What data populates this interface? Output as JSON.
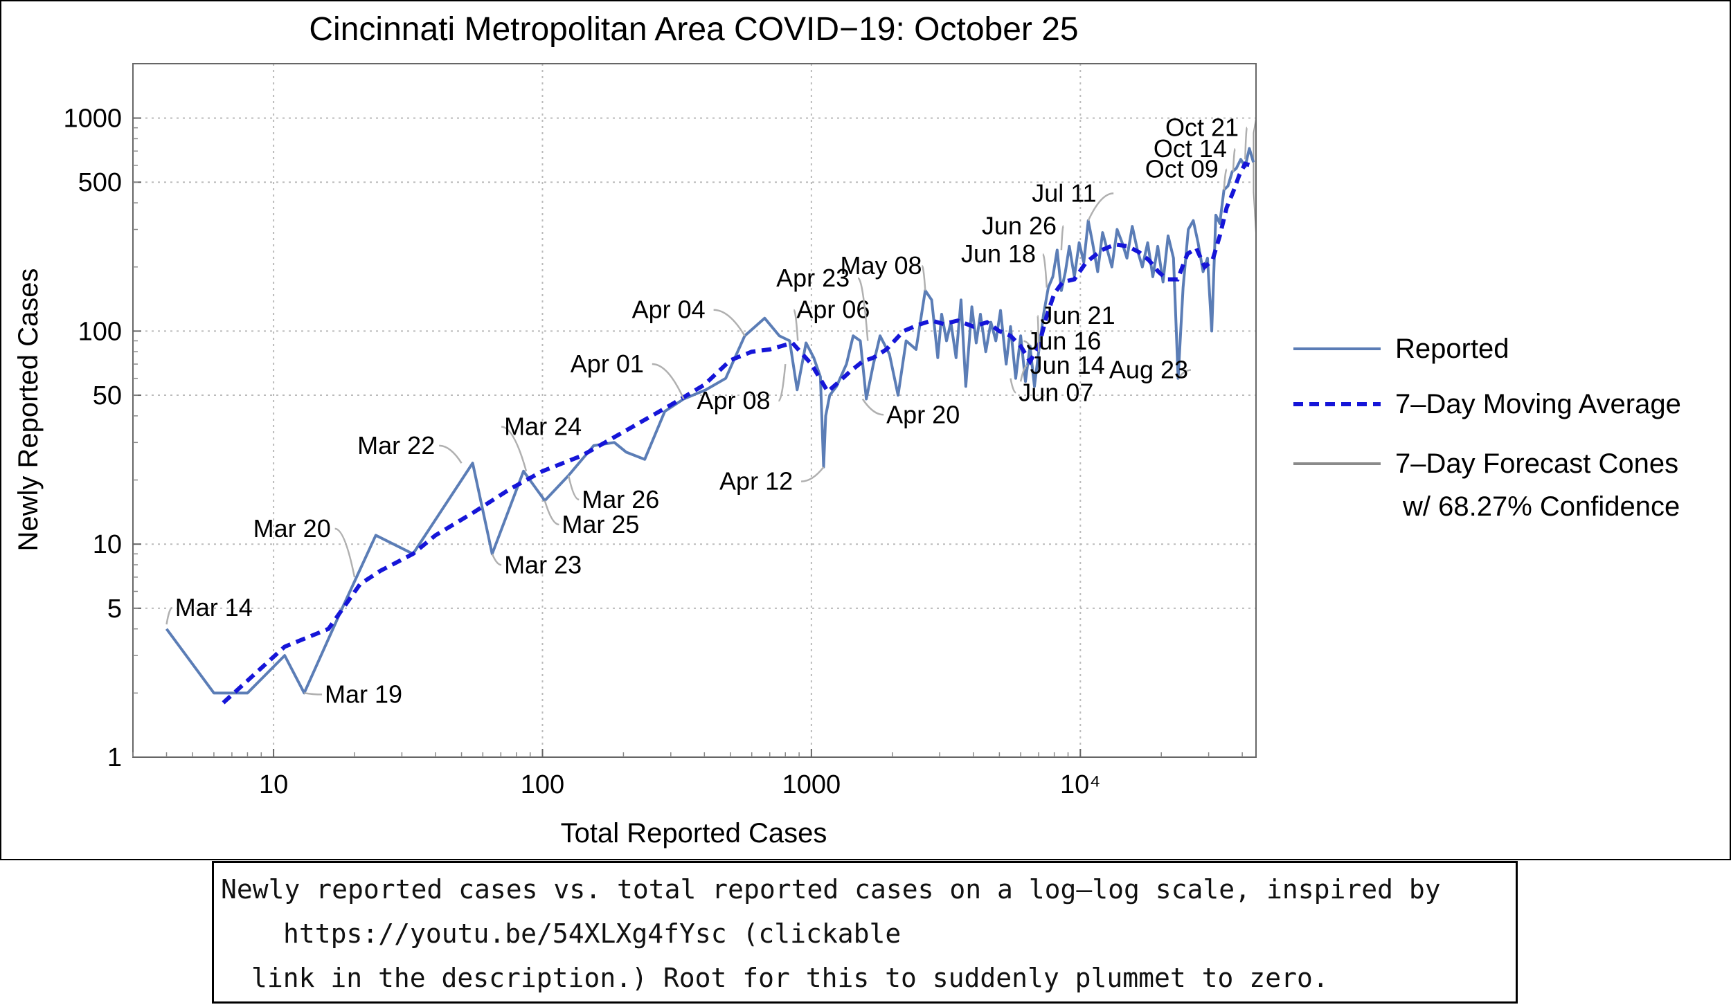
{
  "chart_data": {
    "type": "line",
    "scale": "log-log",
    "title": "Cincinnati Metropolitan Area COVID−19: October 25",
    "xlabel": "Total Reported Cases",
    "ylabel": "Newly Reported Cases",
    "xlim": [
      3,
      45000
    ],
    "ylim": [
      1,
      1800
    ],
    "x_ticks": [
      {
        "value": 10,
        "label": "10"
      },
      {
        "value": 100,
        "label": "100"
      },
      {
        "value": 1000,
        "label": "1000"
      },
      {
        "value": 10000,
        "label": "10⁴"
      }
    ],
    "y_ticks": [
      {
        "value": 1,
        "label": "1"
      },
      {
        "value": 5,
        "label": "5"
      },
      {
        "value": 10,
        "label": "10"
      },
      {
        "value": 50,
        "label": "50"
      },
      {
        "value": 100,
        "label": "100"
      },
      {
        "value": 500,
        "label": "500"
      },
      {
        "value": 1000,
        "label": "1000"
      }
    ],
    "series": [
      {
        "name": "Reported",
        "color": "#5b7db6",
        "points": [
          [
            4,
            4
          ],
          [
            6,
            2
          ],
          [
            8,
            2
          ],
          [
            11,
            3
          ],
          [
            13,
            2
          ],
          [
            18,
            5
          ],
          [
            24,
            11
          ],
          [
            33,
            9
          ],
          [
            55,
            24
          ],
          [
            65,
            9
          ],
          [
            85,
            22
          ],
          [
            102,
            16
          ],
          [
            125,
            21
          ],
          [
            155,
            29
          ],
          [
            185,
            30
          ],
          [
            205,
            27
          ],
          [
            240,
            25
          ],
          [
            285,
            42
          ],
          [
            335,
            48
          ],
          [
            405,
            53
          ],
          [
            480,
            60
          ],
          [
            565,
            95
          ],
          [
            670,
            115
          ],
          [
            760,
            95
          ],
          [
            830,
            90
          ],
          [
            885,
            53
          ],
          [
            955,
            88
          ],
          [
            1020,
            75
          ],
          [
            1080,
            61
          ],
          [
            1110,
            23
          ],
          [
            1130,
            40
          ],
          [
            1170,
            50
          ],
          [
            1240,
            55
          ],
          [
            1350,
            70
          ],
          [
            1430,
            95
          ],
          [
            1520,
            90
          ],
          [
            1600,
            48
          ],
          [
            1700,
            70
          ],
          [
            1800,
            95
          ],
          [
            1950,
            78
          ],
          [
            2100,
            50
          ],
          [
            2250,
            90
          ],
          [
            2450,
            82
          ],
          [
            2650,
            155
          ],
          [
            2800,
            140
          ],
          [
            2950,
            75
          ],
          [
            3050,
            120
          ],
          [
            3180,
            90
          ],
          [
            3300,
            110
          ],
          [
            3450,
            75
          ],
          [
            3600,
            140
          ],
          [
            3750,
            55
          ],
          [
            3950,
            130
          ],
          [
            4100,
            88
          ],
          [
            4250,
            120
          ],
          [
            4450,
            80
          ],
          [
            4650,
            110
          ],
          [
            4850,
            90
          ],
          [
            5050,
            125
          ],
          [
            5300,
            70
          ],
          [
            5500,
            105
          ],
          [
            5750,
            60
          ],
          [
            6000,
            95
          ],
          [
            6250,
            58
          ],
          [
            6500,
            85
          ],
          [
            6750,
            55
          ],
          [
            7000,
            80
          ],
          [
            7300,
            120
          ],
          [
            7600,
            160
          ],
          [
            7900,
            180
          ],
          [
            8200,
            240
          ],
          [
            8500,
            155
          ],
          [
            8800,
            190
          ],
          [
            9100,
            250
          ],
          [
            9500,
            180
          ],
          [
            9900,
            260
          ],
          [
            10300,
            210
          ],
          [
            10700,
            330
          ],
          [
            11100,
            260
          ],
          [
            11600,
            190
          ],
          [
            12100,
            290
          ],
          [
            12600,
            240
          ],
          [
            13100,
            200
          ],
          [
            13700,
            300
          ],
          [
            14300,
            260
          ],
          [
            14900,
            220
          ],
          [
            15600,
            310
          ],
          [
            16300,
            240
          ],
          [
            17000,
            200
          ],
          [
            17800,
            260
          ],
          [
            18600,
            180
          ],
          [
            19400,
            250
          ],
          [
            20300,
            170
          ],
          [
            21200,
            280
          ],
          [
            22200,
            220
          ],
          [
            23100,
            60
          ],
          [
            24100,
            160
          ],
          [
            25200,
            300
          ],
          [
            26300,
            330
          ],
          [
            27400,
            260
          ],
          [
            28600,
            190
          ],
          [
            29700,
            220
          ],
          [
            30800,
            100
          ],
          [
            31900,
            350
          ],
          [
            33000,
            320
          ],
          [
            34200,
            460
          ],
          [
            35400,
            480
          ],
          [
            36700,
            560
          ],
          [
            38000,
            580
          ],
          [
            39500,
            640
          ],
          [
            41000,
            590
          ],
          [
            42500,
            720
          ],
          [
            44000,
            620
          ]
        ]
      },
      {
        "name": "7–Day Moving Average",
        "color": "#1515d8",
        "points": [
          [
            6.5,
            1.8
          ],
          [
            11,
            3.3
          ],
          [
            16,
            4
          ],
          [
            21,
            6.5
          ],
          [
            25,
            7.5
          ],
          [
            33,
            9
          ],
          [
            40,
            11
          ],
          [
            55,
            14
          ],
          [
            75,
            18
          ],
          [
            100,
            22
          ],
          [
            140,
            26
          ],
          [
            220,
            36
          ],
          [
            300,
            45
          ],
          [
            400,
            56
          ],
          [
            500,
            73
          ],
          [
            600,
            80
          ],
          [
            700,
            82
          ],
          [
            850,
            88
          ],
          [
            1000,
            70
          ],
          [
            1150,
            52
          ],
          [
            1250,
            57
          ],
          [
            1400,
            65
          ],
          [
            1550,
            72
          ],
          [
            1700,
            75
          ],
          [
            1900,
            82
          ],
          [
            2200,
            100
          ],
          [
            2500,
            107
          ],
          [
            2800,
            112
          ],
          [
            3100,
            108
          ],
          [
            3500,
            112
          ],
          [
            4000,
            105
          ],
          [
            4500,
            110
          ],
          [
            5000,
            100
          ],
          [
            5500,
            95
          ],
          [
            6000,
            85
          ],
          [
            6500,
            72
          ],
          [
            7000,
            85
          ],
          [
            7500,
            118
          ],
          [
            8000,
            150
          ],
          [
            8600,
            170
          ],
          [
            9500,
            175
          ],
          [
            10500,
            210
          ],
          [
            12000,
            240
          ],
          [
            13500,
            255
          ],
          [
            15000,
            250
          ],
          [
            16500,
            235
          ],
          [
            18000,
            215
          ],
          [
            19500,
            190
          ],
          [
            21000,
            175
          ],
          [
            23000,
            175
          ],
          [
            25000,
            230
          ],
          [
            27000,
            245
          ],
          [
            29000,
            200
          ],
          [
            31000,
            215
          ],
          [
            33000,
            280
          ],
          [
            35000,
            380
          ],
          [
            37000,
            450
          ],
          [
            39000,
            540
          ],
          [
            41000,
            610
          ],
          [
            43000,
            600
          ],
          [
            44500,
            610
          ]
        ]
      },
      {
        "name": "7–Day Forecast Cones",
        "color": "#8a8a8a",
        "cone": {
          "x": [
            44000,
            45000
          ],
          "low": [
            450,
            280
          ],
          "high": [
            850,
            1000
          ]
        }
      }
    ],
    "annotations": [
      {
        "label": "Mar 14",
        "point": [
          4,
          4.2
        ],
        "text_pos": [
          4.3,
          4.6
        ]
      },
      {
        "label": "Mar 19",
        "point": [
          13,
          2
        ],
        "text_pos": [
          15.5,
          1.8
        ]
      },
      {
        "label": "Mar 20",
        "point": [
          20,
          7
        ],
        "text_pos": [
          8.4,
          10.8
        ]
      },
      {
        "label": "Mar 22",
        "point": [
          50,
          24
        ],
        "text_pos": [
          20.5,
          26.5
        ]
      },
      {
        "label": "Mar 23",
        "point": [
          65,
          9
        ],
        "text_pos": [
          72,
          7.3
        ]
      },
      {
        "label": "Mar 24",
        "point": [
          87,
          22
        ],
        "text_pos": [
          72,
          32.5
        ]
      },
      {
        "label": "Mar 25",
        "point": [
          102,
          16
        ],
        "text_pos": [
          118,
          11.3
        ]
      },
      {
        "label": "Mar 26",
        "point": [
          125,
          21
        ],
        "text_pos": [
          140,
          14.8
        ]
      },
      {
        "label": "Apr 01",
        "point": [
          335,
          48
        ],
        "text_pos": [
          127,
          64
        ]
      },
      {
        "label": "Apr 04",
        "point": [
          565,
          95
        ],
        "text_pos": [
          215,
          115
        ]
      },
      {
        "label": "Apr 06",
        "point": [
          890,
          90
        ],
        "text_pos": [
          880,
          115
        ]
      },
      {
        "label": "Apr 08",
        "point": [
          800,
          70
        ],
        "text_pos": [
          375,
          43
        ]
      },
      {
        "label": "Apr 12",
        "point": [
          1110,
          23
        ],
        "text_pos": [
          455,
          18
        ]
      },
      {
        "label": "Apr 20",
        "point": [
          1550,
          48
        ],
        "text_pos": [
          1900,
          37
        ]
      },
      {
        "label": "Apr 23",
        "point": [
          1620,
          90
        ],
        "text_pos": [
          740,
          162
        ]
      },
      {
        "label": "May 08",
        "point": [
          2650,
          155
        ],
        "text_pos": [
          1280,
          185
        ]
      },
      {
        "label": "Jun 07",
        "point": [
          5500,
          60
        ],
        "text_pos": [
          5900,
          47
        ]
      },
      {
        "label": "Jun 14",
        "point": [
          6000,
          58
        ],
        "text_pos": [
          6500,
          63
        ]
      },
      {
        "label": "Jun 16",
        "point": [
          6500,
          85
        ],
        "text_pos": [
          6300,
          82
        ]
      },
      {
        "label": "Jun 18",
        "point": [
          7500,
          160
        ],
        "text_pos": [
          3600,
          210
        ]
      },
      {
        "label": "Jun 21",
        "point": [
          7000,
          80
        ],
        "text_pos": [
          7100,
          108
        ]
      },
      {
        "label": "Jun 26",
        "point": [
          8500,
          240
        ],
        "text_pos": [
          4300,
          285
        ]
      },
      {
        "label": "Jul 11",
        "point": [
          10700,
          330
        ],
        "text_pos": [
          6600,
          405
        ]
      },
      {
        "label": "Aug 23",
        "point": [
          23100,
          60
        ],
        "text_pos": [
          12800,
          60
        ]
      },
      {
        "label": "Oct 09",
        "point": [
          34200,
          460
        ],
        "text_pos": [
          17400,
          525
        ]
      },
      {
        "label": "Oct 14",
        "point": [
          37000,
          560
        ],
        "text_pos": [
          18700,
          655
        ]
      },
      {
        "label": "Oct 21",
        "point": [
          41000,
          640
        ],
        "text_pos": [
          20700,
          825
        ]
      }
    ],
    "legend": {
      "position": "right",
      "entries": [
        {
          "label": "Reported",
          "style": "solid",
          "color": "#5b7db6"
        },
        {
          "label": "7–Day Moving Average",
          "style": "dashed",
          "color": "#1515d8"
        },
        {
          "label": "7–Day Forecast Cones",
          "label2": "w/ 68.27% Confidence",
          "style": "solid",
          "color": "#8a8a8a"
        }
      ]
    },
    "grid": true
  },
  "caption": {
    "line1": "Newly reported cases vs. total reported cases on a log–log scale, inspired by",
    "line2": "https://youtu.be/54XLXg4fYsc (clickable",
    "line3": "link in the description.) Root for this to suddenly plummet to zero."
  }
}
